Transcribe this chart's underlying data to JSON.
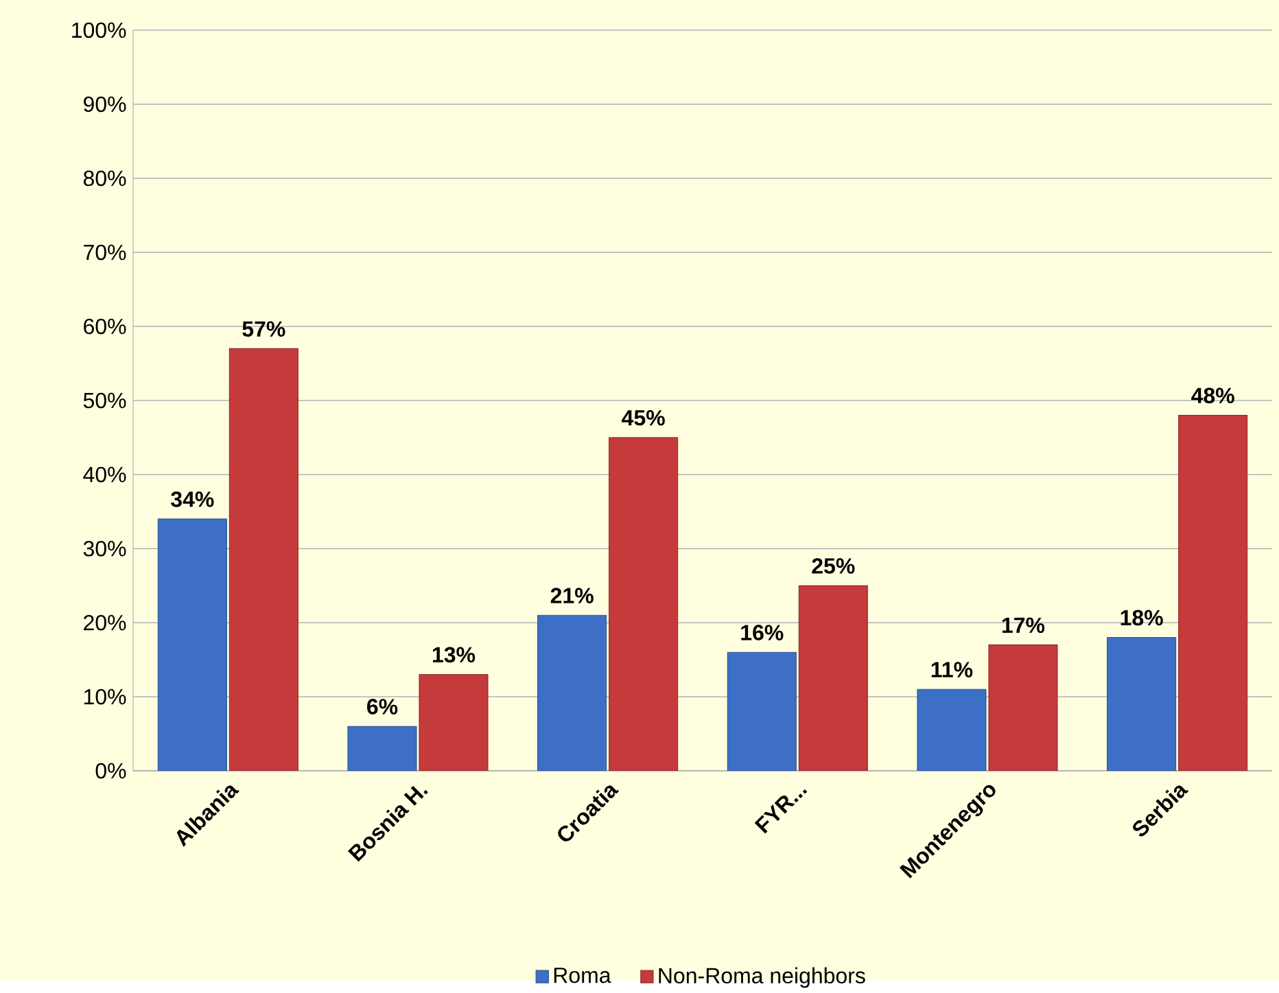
{
  "chart_data": {
    "type": "bar",
    "categories": [
      "Albania",
      "Bosnia H.",
      "Croatia",
      "FYR...",
      "Montenegro",
      "Serbia"
    ],
    "series": [
      {
        "name": "Roma",
        "color": "#3d6fc7",
        "values": [
          34,
          6,
          21,
          16,
          11,
          18
        ],
        "value_labels": [
          "34%",
          "6%",
          "21%",
          "16%",
          "11%",
          "18%"
        ]
      },
      {
        "name": "Non-Roma neighbors",
        "color": "#c53a3a",
        "values": [
          57,
          13,
          45,
          25,
          17,
          48
        ],
        "value_labels": [
          "57%",
          "13%",
          "45%",
          "25%",
          "17%",
          "48%"
        ]
      }
    ],
    "ylim": [
      0,
      100
    ],
    "yticks": [
      {
        "value": 0,
        "label": "0%"
      },
      {
        "value": 10,
        "label": "10%"
      },
      {
        "value": 20,
        "label": "20%"
      },
      {
        "value": 30,
        "label": "30%"
      },
      {
        "value": 40,
        "label": "40%"
      },
      {
        "value": 50,
        "label": "50%"
      },
      {
        "value": 60,
        "label": "60%"
      },
      {
        "value": 70,
        "label": "70%"
      },
      {
        "value": 80,
        "label": "80%"
      },
      {
        "value": 90,
        "label": "90%"
      },
      {
        "value": 100,
        "label": "100%"
      }
    ],
    "grid": "y",
    "legend": "bottom"
  }
}
